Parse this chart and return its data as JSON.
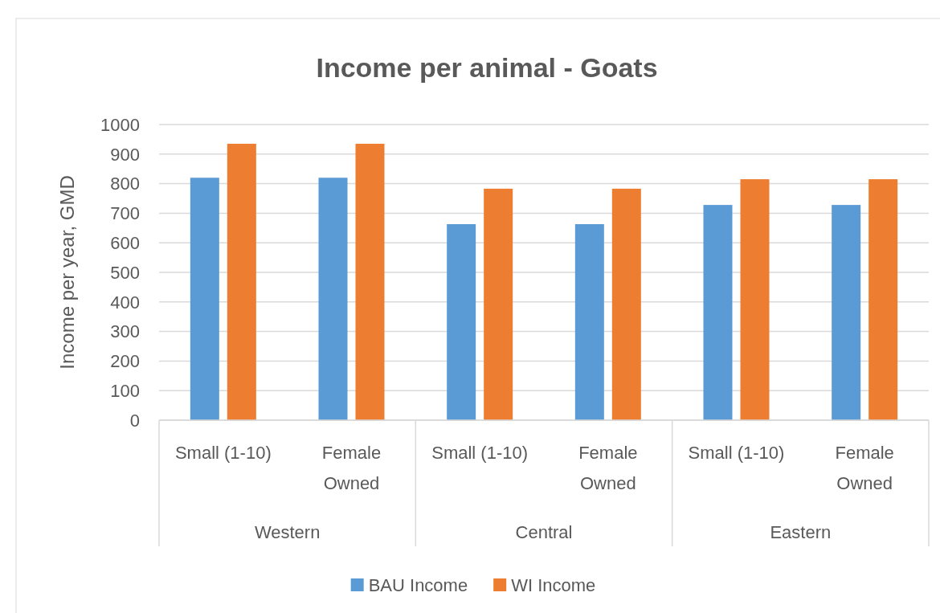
{
  "chart_data": {
    "type": "bar",
    "title": "Income per animal - Goats",
    "ylabel": "Income per year, GMD",
    "categories": [
      "Small (1-10)",
      "Female Owned",
      "Small (1-10)",
      "Female Owned",
      "Small (1-10)",
      "Female Owned"
    ],
    "annotations": [
      "Western",
      "Central",
      "Eastern"
    ],
    "series": [
      {
        "name": "BAU Income",
        "color": "#5b9bd5",
        "values": [
          820,
          820,
          663,
          663,
          728,
          728
        ]
      },
      {
        "name": "WI Income",
        "color": "#ed7d31",
        "values": [
          935,
          935,
          783,
          783,
          815,
          815
        ]
      }
    ],
    "ylim": [
      0,
      1000
    ],
    "yticks": [
      0,
      100,
      200,
      300,
      400,
      500,
      600,
      700,
      800,
      900,
      1000
    ],
    "grid": "y",
    "legend": "bottom"
  }
}
